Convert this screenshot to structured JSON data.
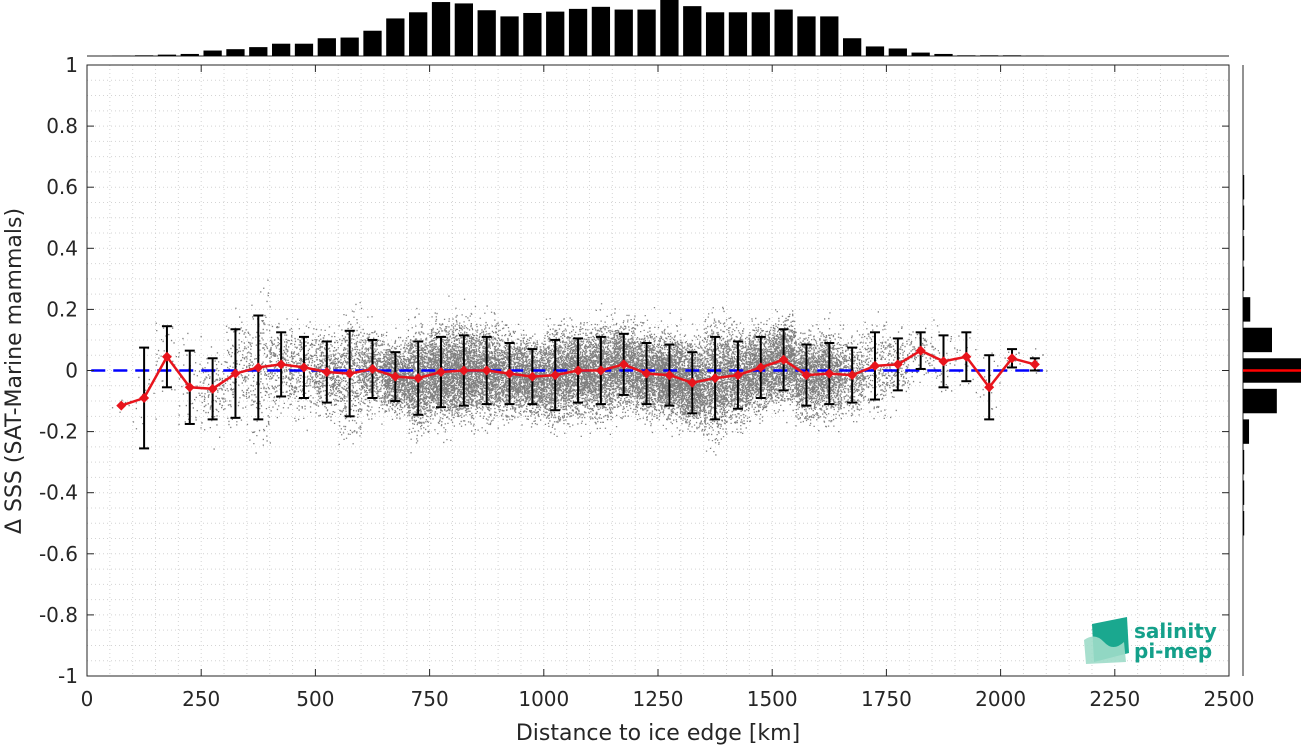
{
  "chart_data": {
    "type": "scatter",
    "xlabel": "Distance to ice edge [km]",
    "ylabel": "Δ SSS (SAT-Marine mammals)",
    "xlim": [
      0,
      2500
    ],
    "ylim": [
      -1,
      1
    ],
    "x_ticks": [
      "0",
      "250",
      "500",
      "750",
      "1000",
      "1250",
      "1500",
      "1750",
      "2000",
      "2250",
      "2500"
    ],
    "y_ticks": [
      "1",
      "0.8",
      "0.6",
      "0.4",
      "0.2",
      "0",
      "-0.2",
      "-0.4",
      "-0.6",
      "-0.8",
      "-1"
    ],
    "grid": "dotted minor grid",
    "reference_line": {
      "y": 0,
      "style": "dashed",
      "color": "#0000ff"
    },
    "scatter_color": "#808080",
    "series": [
      {
        "color": "#e8141c",
        "x": [
          75,
          125,
          175,
          225,
          275,
          325,
          375,
          425,
          475,
          525,
          575,
          625,
          675,
          725,
          775,
          825,
          875,
          925,
          975,
          1025,
          1075,
          1125,
          1175,
          1225,
          1275,
          1325,
          1375,
          1425,
          1475,
          1525,
          1575,
          1625,
          1675,
          1725,
          1775,
          1825,
          1875,
          1925,
          1975,
          2025,
          2075
        ],
        "mean": [
          -0.115,
          -0.09,
          0.045,
          -0.055,
          -0.06,
          -0.01,
          0.01,
          0.02,
          0.01,
          -0.005,
          -0.01,
          0.005,
          -0.02,
          -0.025,
          -0.005,
          0.0,
          0.0,
          -0.01,
          -0.02,
          -0.015,
          0.0,
          0.0,
          0.02,
          -0.01,
          -0.015,
          -0.04,
          -0.025,
          -0.015,
          0.01,
          0.035,
          -0.015,
          -0.01,
          -0.015,
          0.015,
          0.02,
          0.065,
          0.03,
          0.045,
          -0.055,
          0.04,
          0.02
        ],
        "std": [
          0.0,
          0.165,
          0.1,
          0.12,
          0.1,
          0.145,
          0.17,
          0.105,
          0.1,
          0.1,
          0.14,
          0.095,
          0.08,
          0.12,
          0.115,
          0.115,
          0.11,
          0.1,
          0.09,
          0.115,
          0.105,
          0.11,
          0.1,
          0.1,
          0.1,
          0.1,
          0.135,
          0.11,
          0.1,
          0.1,
          0.1,
          0.1,
          0.09,
          0.11,
          0.085,
          0.06,
          0.085,
          0.08,
          0.105,
          0.03,
          0.02
        ]
      }
    ],
    "top_histogram": {
      "bin_centers": [
        75,
        125,
        175,
        225,
        275,
        325,
        375,
        425,
        475,
        525,
        575,
        625,
        675,
        725,
        775,
        825,
        875,
        925,
        975,
        1025,
        1075,
        1125,
        1175,
        1225,
        1275,
        1325,
        1375,
        1425,
        1475,
        1525,
        1575,
        1625,
        1675,
        1725,
        1775,
        1825,
        1875,
        1925,
        1975,
        2025,
        2075
      ],
      "counts": [
        0.5,
        1,
        2,
        3,
        8,
        10,
        13,
        18,
        18,
        26,
        27,
        37,
        55,
        64,
        79,
        77,
        67,
        58,
        63,
        65,
        69,
        72,
        68,
        68,
        82,
        73,
        64,
        64,
        64,
        68,
        58,
        58,
        26,
        14,
        11,
        5,
        3,
        1,
        1,
        1,
        0.5
      ]
    },
    "right_histogram": {
      "bin_centers": [
        -0.5,
        -0.4,
        -0.3,
        -0.2,
        -0.1,
        0.0,
        0.1,
        0.2,
        0.3,
        0.4,
        0.5,
        0.6
      ],
      "counts": [
        1,
        1,
        1,
        5,
        28,
        48,
        24,
        6,
        1,
        1,
        1,
        1
      ],
      "mean_line_color": "#ff0000"
    }
  },
  "logo": {
    "line1": "salinity",
    "line2": "pi-mep",
    "color": "#14a08a"
  }
}
